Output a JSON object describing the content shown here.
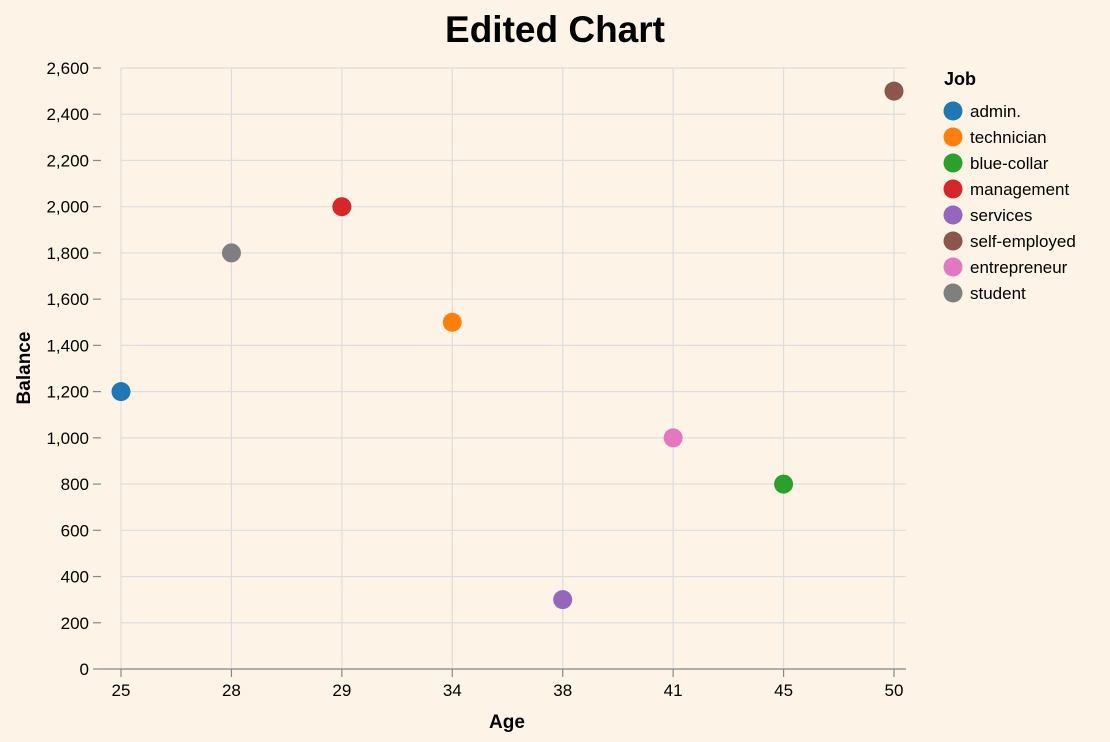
{
  "chart_data": {
    "type": "scatter",
    "title": "Edited Chart",
    "xlabel": "Age",
    "ylabel": "Balance",
    "x_scale": "ordinal",
    "x_categories": [
      "25",
      "28",
      "29",
      "34",
      "38",
      "41",
      "45",
      "50"
    ],
    "ylim": [
      0,
      2600
    ],
    "y_ticks": [
      0,
      200,
      400,
      600,
      800,
      1000,
      1200,
      1400,
      1600,
      1800,
      2000,
      2200,
      2400,
      2600
    ],
    "y_tick_labels": [
      "0",
      "200",
      "400",
      "600",
      "800",
      "1,000",
      "1,200",
      "1,400",
      "1,600",
      "1,800",
      "2,000",
      "2,200",
      "2,400",
      "2,600"
    ],
    "grid": true,
    "legend": {
      "title": "Job",
      "placement": "right",
      "entries": [
        {
          "label": "admin.",
          "color": "#1f77b4"
        },
        {
          "label": "technician",
          "color": "#ff7f0e"
        },
        {
          "label": "blue-collar",
          "color": "#2ca02c"
        },
        {
          "label": "management",
          "color": "#d62728"
        },
        {
          "label": "services",
          "color": "#9467bd"
        },
        {
          "label": "self-employed",
          "color": "#8c564b"
        },
        {
          "label": "entrepreneur",
          "color": "#e377c2"
        },
        {
          "label": "student",
          "color": "#7f7f7f"
        }
      ]
    },
    "points": [
      {
        "x": "25",
        "y": 1200,
        "job": "admin."
      },
      {
        "x": "34",
        "y": 1500,
        "job": "technician"
      },
      {
        "x": "45",
        "y": 800,
        "job": "blue-collar"
      },
      {
        "x": "29",
        "y": 2000,
        "job": "management"
      },
      {
        "x": "38",
        "y": 300,
        "job": "services"
      },
      {
        "x": "50",
        "y": 2500,
        "job": "self-employed"
      },
      {
        "x": "41",
        "y": 1000,
        "job": "entrepreneur"
      },
      {
        "x": "28",
        "y": 1800,
        "job": "student"
      }
    ],
    "background": "#fdf3e6"
  }
}
